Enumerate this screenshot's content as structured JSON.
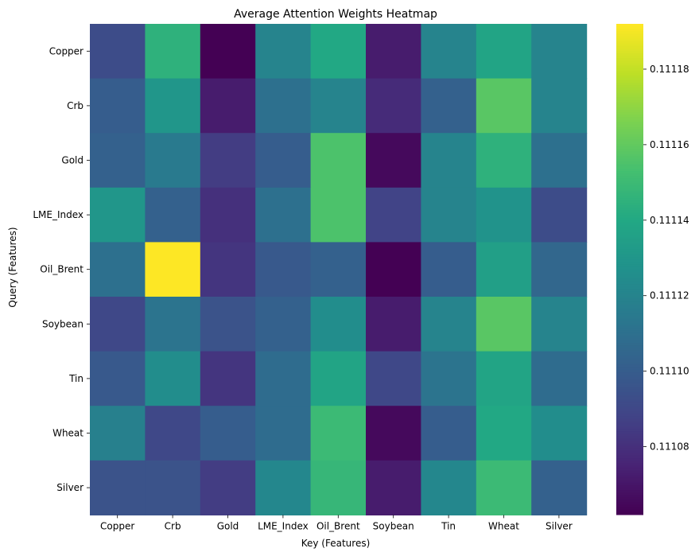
{
  "chart_data": {
    "type": "heatmap",
    "title": "Average Attention Weights Heatmap",
    "xlabel": "Key (Features)",
    "ylabel": "Query (Features)",
    "x_categories": [
      "Copper",
      "Crb",
      "Gold",
      "LME_Index",
      "Oil_Brent",
      "Soybean",
      "Tin",
      "Wheat",
      "Silver"
    ],
    "y_categories": [
      "Copper",
      "Crb",
      "Gold",
      "LME_Index",
      "Oil_Brent",
      "Soybean",
      "Tin",
      "Wheat",
      "Silver"
    ],
    "values": [
      [
        0.111092,
        0.111145,
        0.111062,
        0.11112,
        0.11114,
        0.111072,
        0.11112,
        0.111138,
        0.11112
      ],
      [
        0.1111,
        0.11113,
        0.111072,
        0.11111,
        0.11112,
        0.111078,
        0.111102,
        0.111158,
        0.11112
      ],
      [
        0.111102,
        0.111115,
        0.111085,
        0.1111,
        0.111155,
        0.111065,
        0.11112,
        0.111145,
        0.11111
      ],
      [
        0.11113,
        0.111102,
        0.11108,
        0.11111,
        0.111155,
        0.111088,
        0.11112,
        0.111128,
        0.111092
      ],
      [
        0.11111,
        0.111192,
        0.111082,
        0.111098,
        0.111102,
        0.111062,
        0.1111,
        0.111135,
        0.111105
      ],
      [
        0.11109,
        0.111112,
        0.111095,
        0.111102,
        0.111125,
        0.111072,
        0.11112,
        0.111158,
        0.11112
      ],
      [
        0.111098,
        0.111125,
        0.111082,
        0.111108,
        0.111138,
        0.11109,
        0.111112,
        0.111138,
        0.111108
      ],
      [
        0.111118,
        0.11109,
        0.1111,
        0.111108,
        0.11115,
        0.111065,
        0.1111,
        0.11114,
        0.111125
      ],
      [
        0.111095,
        0.111095,
        0.111085,
        0.111122,
        0.111148,
        0.111072,
        0.111122,
        0.11115,
        0.111102
      ]
    ],
    "colorbar": {
      "colormap": "viridis",
      "range": [
        0.111062,
        0.111192
      ],
      "ticks": [
        0.11108,
        0.1111,
        0.11112,
        0.11114,
        0.11116,
        0.11118
      ],
      "tick_labels": [
        "0.11108",
        "0.11110",
        "0.11112",
        "0.11114",
        "0.11116",
        "0.11118"
      ]
    }
  }
}
